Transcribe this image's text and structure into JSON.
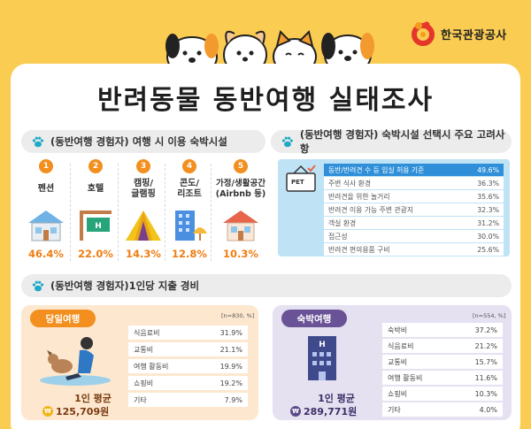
{
  "logo": {
    "text": "한국관광공사"
  },
  "title": "반려동물 동반여행 실태조사",
  "section1": {
    "heading": "(동반여행 경험자) 여행 시 이용 숙박시설",
    "items": [
      {
        "num": "1",
        "label": "펜션",
        "pct": "46.4%",
        "icon": "pension-house-icon"
      },
      {
        "num": "2",
        "label": "호텔",
        "pct": "22.0%",
        "icon": "hotel-sign-icon"
      },
      {
        "num": "3",
        "label": "캠핑/\n글램핑",
        "pct": "14.3%",
        "icon": "tent-icon"
      },
      {
        "num": "4",
        "label": "콘도/\n리조트",
        "pct": "12.8%",
        "icon": "condo-building-icon"
      },
      {
        "num": "5",
        "label": "가정/생활공간\n(Airbnb 등)",
        "pct": "10.3%",
        "icon": "home-icon"
      }
    ]
  },
  "section2": {
    "heading": "(동반여행 경험자) 숙박시설 선택시 주요 고려사항",
    "badge": "PET",
    "rows": [
      {
        "label": "동반/반려견 수 등 입실 허용 기준",
        "value": "49.6%"
      },
      {
        "label": "주변 식사 환경",
        "value": "36.3%"
      },
      {
        "label": "반려견을 위한 놀거리",
        "value": "35.6%"
      },
      {
        "label": "반려견 이용 가능 주변 관광지",
        "value": "32.3%"
      },
      {
        "label": "객실 환경",
        "value": "31.2%"
      },
      {
        "label": "접근성",
        "value": "30.0%"
      },
      {
        "label": "반려견 편의용품 구비",
        "value": "25.6%"
      }
    ]
  },
  "section3": {
    "heading": "(동반여행 경험자)1인당 지출 경비",
    "day": {
      "tag": "당일여행",
      "n": "[n=830, %]",
      "avg_label": "1인 평균",
      "avg_value": "125,709원",
      "won": "₩",
      "rows": [
        {
          "label": "식음료비",
          "value": "31.9%"
        },
        {
          "label": "교통비",
          "value": "21.1%"
        },
        {
          "label": "여행 활동비",
          "value": "19.9%"
        },
        {
          "label": "쇼핑비",
          "value": "19.2%"
        },
        {
          "label": "기타",
          "value": "7.9%"
        }
      ]
    },
    "stay": {
      "tag": "숙박여행",
      "n": "[n=554, %]",
      "avg_label": "1인 평균",
      "avg_value": "289,771원",
      "won": "₩",
      "rows": [
        {
          "label": "숙박비",
          "value": "37.2%"
        },
        {
          "label": "식음료비",
          "value": "21.2%"
        },
        {
          "label": "교통비",
          "value": "15.7%"
        },
        {
          "label": "여행 활동비",
          "value": "11.6%"
        },
        {
          "label": "쇼핑비",
          "value": "10.3%"
        },
        {
          "label": "기타",
          "value": "4.0%"
        }
      ]
    }
  },
  "colors": {
    "background": "#fbcc52",
    "accent_orange": "#f28f1e",
    "highlight_blue": "#2f8fd8",
    "day_bg": "#fde7cf",
    "stay_bg": "#e5e1f1"
  }
}
